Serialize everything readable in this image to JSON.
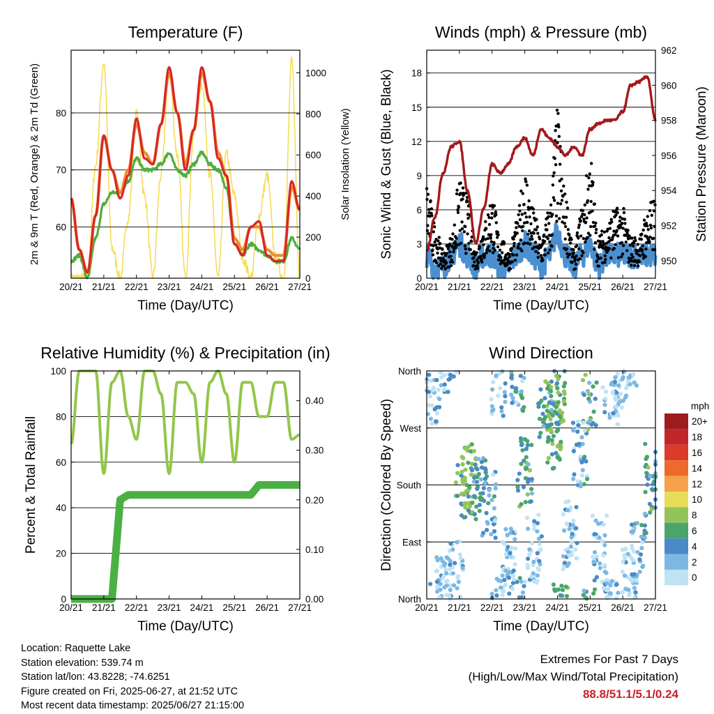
{
  "time_ticks": [
    "20/21",
    "21/21",
    "22/21",
    "23/21",
    "24/21",
    "25/21",
    "26/21",
    "27/21"
  ],
  "time_axis_label": "Time (Day/UTC)",
  "panels": {
    "temperature": {
      "title": "Temperature (F)",
      "ylabel": "2m & 9m T (Red, Orange) & 2m Td (Green)",
      "ylabel_right": "Solar Insolation (Yellow)",
      "yticks": [
        "60",
        "70",
        "80"
      ],
      "yticks_right": [
        "0",
        "200",
        "400",
        "600",
        "800",
        "1000"
      ],
      "colors": {
        "t2m": "#d62728",
        "t9m": "#f28a2e",
        "td2m": "#4fae3c",
        "solar": "#f6dc57"
      }
    },
    "winds": {
      "title": "Winds (mph) & Pressure (mb)",
      "ylabel": "Sonic Wind & Gust (Blue, Black)",
      "ylabel_right": "Station Pressure (Maroon)",
      "yticks": [
        "0",
        "3",
        "6",
        "9",
        "12",
        "15",
        "18"
      ],
      "yticks_right": [
        "950",
        "952",
        "954",
        "956",
        "958",
        "960",
        "962"
      ],
      "colors": {
        "wind": "#4a8fd0",
        "gust": "#000000",
        "pressure": "#a3191b"
      }
    },
    "humidity": {
      "title": "Relative Humidity (%) & Precipitation (in)",
      "ylabel": "Percent & Total Rainfall",
      "yticks": [
        "0",
        "20",
        "40",
        "60",
        "80",
        "100"
      ],
      "yticks_right": [
        "0.00",
        "0.10",
        "0.20",
        "0.30",
        "0.40"
      ],
      "colors": {
        "rh": "#93c64a",
        "precip": "#4bb043"
      }
    },
    "direction": {
      "title": "Wind Direction",
      "ylabel": "Direction (Colored By Speed)",
      "yticks": [
        "North",
        "East",
        "South",
        "West",
        "North"
      ],
      "legend_title": "mph",
      "legend_labels": [
        "20+",
        "18",
        "16",
        "14",
        "12",
        "10",
        "8",
        "6",
        "4",
        "2",
        "0"
      ],
      "legend_colors": [
        "#9e1c1f",
        "#c0272b",
        "#dc3a2a",
        "#ee6a2c",
        "#f5a24a",
        "#e7dc5a",
        "#93c45a",
        "#4aa56a",
        "#4a8ac5",
        "#7db8e3",
        "#bfe3f5"
      ]
    }
  },
  "info": {
    "location": "Location: Raquette Lake",
    "elevation": "Station elevation: 539.74 m",
    "latlon": "Station lat/lon: 43.8228; -74.6251",
    "created": "Figure created on Fri, 2025-06-27, at 21:52 UTC",
    "recent": "Most recent data timestamp: 2025/06/27 21:15:00"
  },
  "extremes": {
    "line1": "Extremes For Past 7 Days",
    "line2": "(High/Low/Max Wind/Total Precipitation)",
    "values": "88.8/51.1/5.1/0.24"
  },
  "chart_data": [
    {
      "type": "line",
      "title": "Temperature (F)",
      "xlabel": "Time (Day/UTC)",
      "ylabel": "2m & 9m T (Red, Orange) & 2m Td (Green)",
      "ylabel_right": "Solar Insolation (Yellow)",
      "xlim": [
        0,
        7
      ],
      "ylim": [
        51,
        91
      ],
      "ylim_right": [
        0,
        1110
      ],
      "x": [
        0,
        0.25,
        0.5,
        0.75,
        1,
        1.25,
        1.5,
        1.75,
        2,
        2.25,
        2.5,
        2.75,
        3,
        3.25,
        3.5,
        3.75,
        4,
        4.25,
        4.5,
        4.75,
        5,
        5.25,
        5.5,
        5.75,
        6,
        6.25,
        6.5,
        6.75,
        7
      ],
      "series": [
        {
          "name": "2m T",
          "axis": "left",
          "values": [
            65,
            56,
            52,
            62,
            76,
            70,
            65,
            69,
            79,
            72,
            71,
            78,
            88,
            80,
            70,
            77,
            88,
            82,
            72,
            69,
            57,
            55,
            60,
            61,
            55,
            54,
            54,
            68,
            63
          ]
        },
        {
          "name": "9m T",
          "axis": "left",
          "values": [
            65,
            56,
            52,
            62,
            76,
            70,
            66,
            70,
            78,
            73,
            71,
            78,
            87,
            80,
            71,
            77,
            87,
            82,
            73,
            69,
            58,
            56,
            60,
            60,
            56,
            55,
            55,
            67,
            63
          ]
        },
        {
          "name": "2m Td",
          "axis": "left",
          "values": [
            54,
            55,
            51,
            58,
            64,
            66,
            66,
            68,
            72,
            70,
            70,
            71,
            73,
            70,
            69,
            71,
            73,
            71,
            70,
            67,
            57,
            55,
            57,
            56,
            55,
            54,
            54,
            58,
            56
          ]
        },
        {
          "name": "Solar",
          "axis": "right",
          "values": [
            0,
            0,
            0,
            550,
            1050,
            150,
            0,
            300,
            800,
            400,
            0,
            500,
            1000,
            600,
            0,
            700,
            950,
            500,
            0,
            600,
            400,
            100,
            0,
            300,
            500,
            100,
            0,
            1050,
            0
          ]
        }
      ]
    },
    {
      "type": "line",
      "title": "Winds (mph) & Pressure (mb)",
      "xlabel": "Time (Day/UTC)",
      "ylabel": "Sonic Wind & Gust (Blue, Black)",
      "ylabel_right": "Station Pressure (Maroon)",
      "xlim": [
        0,
        7
      ],
      "ylim": [
        0,
        20
      ],
      "ylim_right": [
        949,
        962
      ],
      "x": [
        0,
        0.25,
        0.5,
        0.75,
        1,
        1.25,
        1.5,
        1.75,
        2,
        2.25,
        2.5,
        2.75,
        3,
        3.25,
        3.5,
        3.75,
        4,
        4.25,
        4.5,
        4.75,
        5,
        5.25,
        5.5,
        5.75,
        6,
        6.25,
        6.5,
        6.75,
        7
      ],
      "series": [
        {
          "name": "Sonic Wind",
          "axis": "left",
          "values": [
            2,
            1,
            1,
            2,
            3,
            2,
            1,
            2,
            2,
            1,
            1,
            2,
            3,
            2,
            1,
            2,
            4,
            2,
            1,
            2,
            3,
            1,
            2,
            2,
            2,
            2,
            2,
            2,
            2
          ]
        },
        {
          "name": "Gust",
          "axis": "left",
          "values": [
            7,
            4,
            2,
            3,
            7,
            6,
            2,
            4,
            6,
            3,
            2,
            4,
            8,
            5,
            3,
            5,
            12,
            6,
            2,
            5,
            9,
            3,
            4,
            5,
            5,
            3,
            3,
            5,
            6
          ]
        },
        {
          "name": "Station Pressure",
          "axis": "right",
          "values": [
            950.5,
            952.5,
            955,
            956.5,
            956.8,
            954,
            951,
            953,
            955.5,
            955,
            955.5,
            956.5,
            957,
            956,
            957.5,
            957,
            956.5,
            956,
            956.5,
            956,
            957.5,
            957.8,
            958,
            958,
            958.5,
            960,
            960.2,
            960.5,
            958
          ]
        }
      ]
    },
    {
      "type": "line",
      "title": "Relative Humidity (%) & Precipitation (in)",
      "xlabel": "Time (Day/UTC)",
      "ylabel": "Percent & Total Rainfall",
      "xlim": [
        0,
        7
      ],
      "ylim": [
        0,
        100
      ],
      "ylim_right": [
        0,
        0.46
      ],
      "x": [
        0,
        0.25,
        0.5,
        0.75,
        1,
        1.25,
        1.5,
        1.75,
        2,
        2.25,
        2.5,
        2.75,
        3,
        3.25,
        3.5,
        3.75,
        4,
        4.25,
        4.5,
        4.75,
        5,
        5.25,
        5.5,
        5.75,
        6,
        6.25,
        6.5,
        6.75,
        7
      ],
      "series": [
        {
          "name": "Relative Humidity",
          "axis": "left",
          "values": [
            68,
            100,
            100,
            100,
            55,
            95,
            100,
            80,
            70,
            100,
            100,
            90,
            55,
            95,
            95,
            90,
            60,
            95,
            100,
            90,
            60,
            95,
            95,
            80,
            80,
            95,
            95,
            70,
            72
          ]
        },
        {
          "name": "Total Precipitation",
          "axis": "right",
          "values": [
            0,
            0,
            0,
            0,
            0,
            0,
            0.2,
            0.21,
            0.21,
            0.21,
            0.21,
            0.21,
            0.21,
            0.21,
            0.21,
            0.21,
            0.21,
            0.21,
            0.21,
            0.21,
            0.21,
            0.21,
            0.21,
            0.23,
            0.23,
            0.23,
            0.23,
            0.23,
            0.23
          ]
        }
      ]
    },
    {
      "type": "scatter",
      "title": "Wind Direction",
      "xlabel": "Time (Day/UTC)",
      "ylabel": "Direction (Colored By Speed)",
      "xlim": [
        0,
        7
      ],
      "ylim": [
        0,
        360
      ],
      "yticks": [
        "North",
        "East",
        "South",
        "West",
        "North"
      ],
      "colorbar": {
        "title": "mph",
        "labels": [
          "20+",
          "18",
          "16",
          "14",
          "12",
          "10",
          "8",
          "6",
          "4",
          "2",
          "0"
        ]
      },
      "series": [
        {
          "name": "Direction",
          "x": [
            0.2,
            0.5,
            0.9,
            1.1,
            1.3,
            1.6,
            1.9,
            2.2,
            2.5,
            2.8,
            3.0,
            3.3,
            3.6,
            3.9,
            4.1,
            4.4,
            4.7,
            5.0,
            5.3,
            5.6,
            5.9,
            6.2,
            6.5,
            6.9
          ],
          "values": [
            330,
            20,
            40,
            175,
            190,
            180,
            150,
            340,
            60,
            350,
            200,
            80,
            300,
            260,
            330,
            100,
            230,
            320,
            80,
            340,
            330,
            30,
            80,
            190
          ],
          "speed": [
            1,
            1,
            1,
            4,
            4,
            3,
            2,
            1,
            1,
            2,
            3,
            1,
            3,
            4,
            4,
            1,
            2,
            3,
            1,
            1,
            1,
            1,
            2,
            3
          ]
        }
      ]
    }
  ]
}
